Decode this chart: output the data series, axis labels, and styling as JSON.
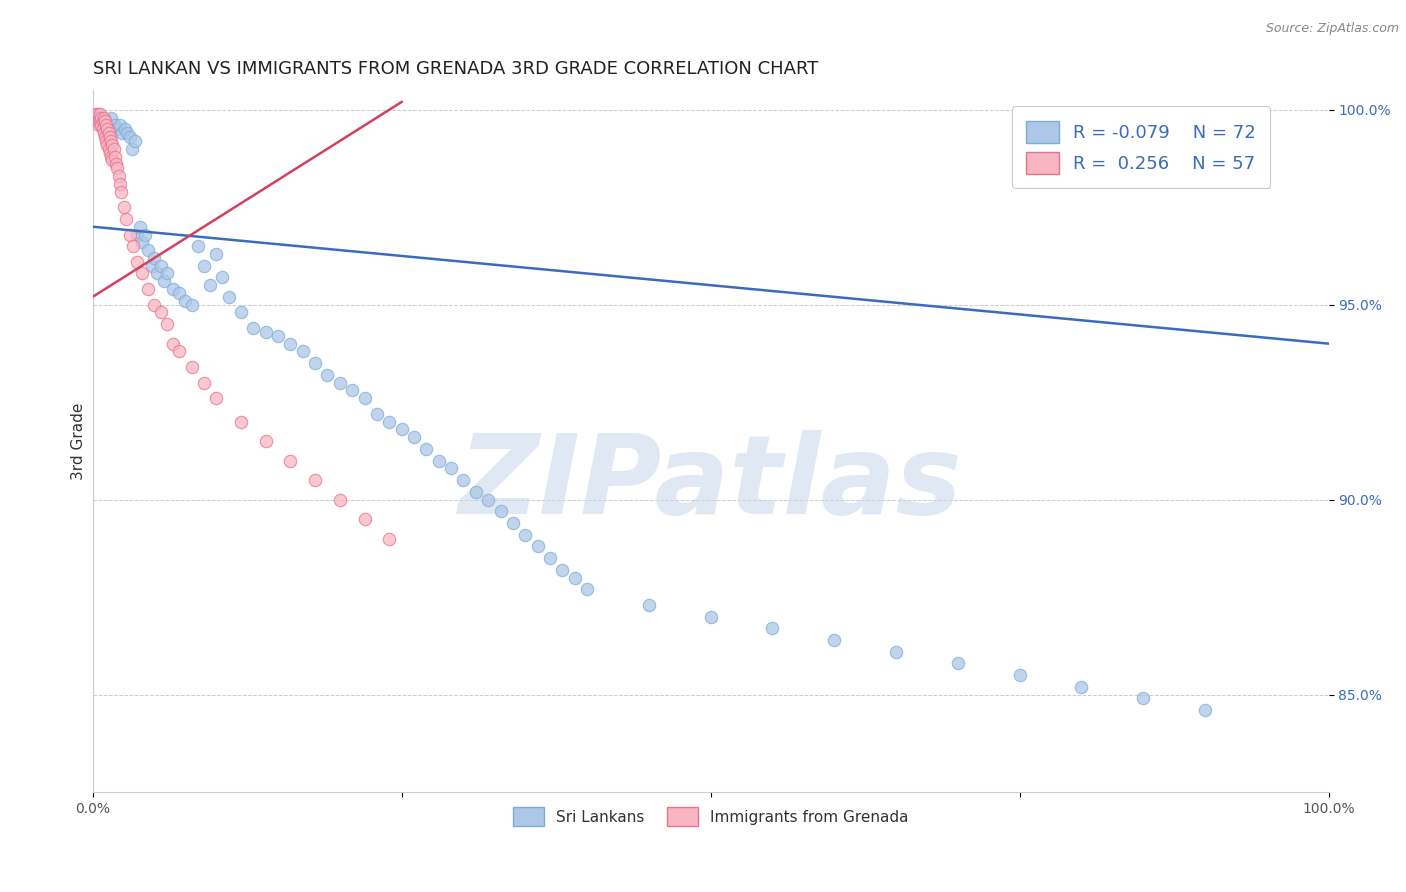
{
  "title": "SRI LANKAN VS IMMIGRANTS FROM GRENADA 3RD GRADE CORRELATION CHART",
  "source_text": "Source: ZipAtlas.com",
  "ylabel": "3rd Grade",
  "xlim": [
    0.0,
    1.0
  ],
  "ylim": [
    0.825,
    1.005
  ],
  "y_ticks": [
    0.85,
    0.9,
    0.95,
    1.0
  ],
  "y_tick_labels": [
    "85.0%",
    "90.0%",
    "95.0%",
    "100.0%"
  ],
  "background_color": "#ffffff",
  "grid_color": "#cccccc",
  "sri_lankan_color": "#aec6e8",
  "grenada_color": "#f7b6c2",
  "sri_lankan_edge": "#7aafd4",
  "grenada_edge": "#e87090",
  "trend_blue": "#3a6bbf",
  "trend_pink": "#d44060",
  "legend_r1": "-0.079",
  "legend_n1": "72",
  "legend_r2": "0.256",
  "legend_n2": "57",
  "legend_label1": "Sri Lankans",
  "legend_label2": "Immigrants from Grenada",
  "watermark": "ZIPatlas",
  "watermark_color": "#c8d8ea",
  "title_fontsize": 13,
  "axis_label_fontsize": 11,
  "tick_fontsize": 10,
  "dot_size": 80,
  "blue_x": [
    0.005,
    0.01,
    0.015,
    0.018,
    0.02,
    0.022,
    0.024,
    0.026,
    0.028,
    0.03,
    0.032,
    0.034,
    0.036,
    0.038,
    0.04,
    0.042,
    0.045,
    0.048,
    0.05,
    0.052,
    0.055,
    0.058,
    0.06,
    0.065,
    0.07,
    0.075,
    0.08,
    0.085,
    0.09,
    0.095,
    0.1,
    0.105,
    0.11,
    0.12,
    0.13,
    0.14,
    0.15,
    0.16,
    0.17,
    0.18,
    0.19,
    0.2,
    0.21,
    0.22,
    0.23,
    0.24,
    0.25,
    0.26,
    0.27,
    0.28,
    0.29,
    0.3,
    0.31,
    0.32,
    0.33,
    0.34,
    0.35,
    0.36,
    0.37,
    0.38,
    0.39,
    0.4,
    0.45,
    0.5,
    0.55,
    0.6,
    0.65,
    0.7,
    0.75,
    0.8,
    0.85,
    0.9
  ],
  "blue_y": [
    0.998,
    0.997,
    0.998,
    0.996,
    0.995,
    0.996,
    0.994,
    0.995,
    0.994,
    0.993,
    0.99,
    0.992,
    0.968,
    0.97,
    0.966,
    0.968,
    0.964,
    0.96,
    0.962,
    0.958,
    0.96,
    0.956,
    0.958,
    0.954,
    0.953,
    0.951,
    0.95,
    0.965,
    0.96,
    0.955,
    0.963,
    0.957,
    0.952,
    0.948,
    0.944,
    0.943,
    0.942,
    0.94,
    0.938,
    0.935,
    0.932,
    0.93,
    0.928,
    0.926,
    0.922,
    0.92,
    0.918,
    0.916,
    0.913,
    0.91,
    0.908,
    0.905,
    0.902,
    0.9,
    0.897,
    0.894,
    0.891,
    0.888,
    0.885,
    0.882,
    0.88,
    0.877,
    0.873,
    0.87,
    0.867,
    0.864,
    0.861,
    0.858,
    0.855,
    0.852,
    0.849,
    0.846
  ],
  "pink_x": [
    0.002,
    0.003,
    0.004,
    0.004,
    0.005,
    0.005,
    0.006,
    0.006,
    0.007,
    0.007,
    0.008,
    0.008,
    0.009,
    0.009,
    0.01,
    0.01,
    0.011,
    0.011,
    0.012,
    0.012,
    0.013,
    0.013,
    0.014,
    0.014,
    0.015,
    0.015,
    0.016,
    0.016,
    0.017,
    0.018,
    0.019,
    0.02,
    0.021,
    0.022,
    0.023,
    0.025,
    0.027,
    0.03,
    0.033,
    0.036,
    0.04,
    0.045,
    0.05,
    0.055,
    0.06,
    0.065,
    0.07,
    0.08,
    0.09,
    0.1,
    0.12,
    0.14,
    0.16,
    0.18,
    0.2,
    0.22,
    0.24
  ],
  "pink_y": [
    0.999,
    0.998,
    0.999,
    0.997,
    0.998,
    0.996,
    0.999,
    0.997,
    0.998,
    0.996,
    0.997,
    0.995,
    0.998,
    0.994,
    0.997,
    0.993,
    0.996,
    0.992,
    0.995,
    0.991,
    0.994,
    0.99,
    0.993,
    0.989,
    0.992,
    0.988,
    0.991,
    0.987,
    0.99,
    0.988,
    0.986,
    0.985,
    0.983,
    0.981,
    0.979,
    0.975,
    0.972,
    0.968,
    0.965,
    0.961,
    0.958,
    0.954,
    0.95,
    0.948,
    0.945,
    0.94,
    0.938,
    0.934,
    0.93,
    0.926,
    0.92,
    0.915,
    0.91,
    0.905,
    0.9,
    0.895,
    0.89
  ],
  "blue_trend_x": [
    0.0,
    1.0
  ],
  "blue_trend_y": [
    0.97,
    0.94
  ],
  "pink_trend_x": [
    0.0,
    0.25
  ],
  "pink_trend_y": [
    0.952,
    1.002
  ]
}
